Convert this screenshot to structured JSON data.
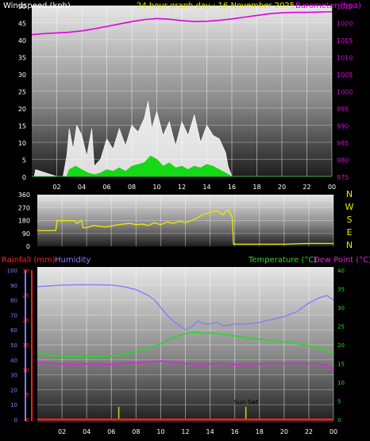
{
  "colors": {
    "background": "#000000",
    "wind": "#ffffff",
    "gust": "#00d800",
    "barometer": "#e000e0",
    "direction": "#e8e800",
    "rain": "#ff2020",
    "humidity": "#7f7fff",
    "temperature": "#22dd22",
    "dewpoint": "#e020e0",
    "sun_marker": "#d8d800",
    "axis_text": "#ffffff"
  },
  "header": {
    "wind_label": "Windspeed (kph)",
    "title": "24 hour graph day : 16 November 2025",
    "baro_label": "Barometer (hpa)"
  },
  "x_ticks": [
    "02",
    "04",
    "06",
    "08",
    "10",
    "12",
    "14",
    "16",
    "18",
    "20",
    "22",
    "00"
  ],
  "compass": [
    "N",
    "W",
    "S",
    "E",
    "N"
  ],
  "bottom_labels": {
    "rain_label": "Rainfall (mm)",
    "humidity_label": "Humidity",
    "temp_label": "Temperature (°C)",
    "dew_label": "Dew Point (°C)",
    "sunset_label": "Sun Set"
  },
  "chart_data": [
    {
      "type": "line",
      "title": "24 hour graph day : 16 November 2025",
      "y_left_label": "Windspeed (kph)",
      "y_right_label": "Barometer (hpa)",
      "y_left_ticks": [
        "0",
        "5",
        "10",
        "15",
        "20",
        "25",
        "30",
        "35",
        "40",
        "45",
        "50"
      ],
      "y_left_range": [
        0,
        50
      ],
      "y_right_ticks": [
        "975",
        "980",
        "985",
        "990",
        "995",
        "1000",
        "1005",
        "1010",
        "1015",
        "1020",
        "1025"
      ],
      "y_right_range": [
        975,
        1025
      ],
      "x_range_hours": [
        0,
        24
      ],
      "barometer": {
        "x": [
          0,
          1,
          2,
          3,
          4,
          5,
          6,
          7,
          8,
          9,
          10,
          11,
          12,
          13,
          14,
          15,
          16,
          17,
          18,
          19,
          20,
          21,
          22,
          23,
          24
        ],
        "y": [
          1016.5,
          1016.8,
          1017.0,
          1017.2,
          1017.6,
          1018.2,
          1018.9,
          1019.6,
          1020.3,
          1020.9,
          1021.2,
          1021.0,
          1020.6,
          1020.3,
          1020.4,
          1020.7,
          1021.1,
          1021.6,
          1022.1,
          1022.6,
          1022.9,
          1023.0,
          1023.0,
          1023.1,
          1023.2
        ]
      },
      "wind_envelope": {
        "x": [
          0,
          0.2,
          0.3,
          2.0,
          2.5,
          2.8,
          3.0,
          3.3,
          3.6,
          4.0,
          4.4,
          4.8,
          5.0,
          5.5,
          6.0,
          6.5,
          7.0,
          7.5,
          8.0,
          8.5,
          9.0,
          9.3,
          9.6,
          10.0,
          10.5,
          11.0,
          11.5,
          12.0,
          12.5,
          13.0,
          13.5,
          14.0,
          14.5,
          15.0,
          15.5,
          15.7,
          16.0,
          24.0
        ],
        "y": [
          0,
          0,
          2,
          0,
          0,
          6,
          14,
          8,
          15,
          12,
          6,
          14,
          3,
          5,
          11,
          8,
          14,
          9,
          15,
          13,
          17,
          22,
          14,
          19,
          12,
          16,
          9,
          16,
          12,
          18,
          10,
          15,
          12,
          11,
          7,
          3,
          0,
          0
        ]
      },
      "gust_envelope": {
        "x": [
          0,
          2.8,
          3.0,
          3.5,
          4.0,
          4.5,
          5.0,
          5.5,
          6.0,
          6.5,
          7.0,
          7.5,
          8.0,
          8.5,
          9.0,
          9.5,
          10.0,
          10.5,
          11.0,
          11.5,
          12.0,
          12.5,
          13.0,
          13.5,
          14.0,
          14.5,
          15.0,
          15.5,
          16.0,
          24.0
        ],
        "y": [
          0,
          0,
          2,
          3,
          2,
          1,
          0.5,
          1,
          2,
          1.5,
          2.5,
          1.5,
          3,
          3.5,
          4,
          6,
          5,
          3,
          4,
          2.5,
          3,
          2,
          3,
          2.5,
          3.5,
          3,
          2,
          1,
          0,
          0
        ]
      }
    },
    {
      "type": "line",
      "title": "",
      "y_left_ticks": [
        "0",
        "90",
        "180",
        "270",
        "360"
      ],
      "y_range": [
        0,
        360
      ],
      "x_range_hours": [
        0,
        24
      ],
      "wind_direction": {
        "x": [
          0,
          1.5,
          1.6,
          3.0,
          3.2,
          3.6,
          3.7,
          4.0,
          4.5,
          5.0,
          5.5,
          6.0,
          6.5,
          7.0,
          7.5,
          8.0,
          8.5,
          9.0,
          9.5,
          10.0,
          10.5,
          11.0,
          11.5,
          12.0,
          12.5,
          13.0,
          13.5,
          14.0,
          14.5,
          15.0,
          15.5,
          15.8,
          15.9,
          17.0,
          18.0,
          20.0,
          22.0,
          23.0,
          24.0
        ],
        "y": [
          110,
          110,
          180,
          178,
          160,
          180,
          130,
          130,
          145,
          140,
          135,
          140,
          150,
          155,
          160,
          150,
          155,
          145,
          165,
          150,
          170,
          160,
          175,
          165,
          180,
          200,
          225,
          235,
          250,
          220,
          255,
          200,
          15,
          15,
          15,
          15,
          20,
          20,
          20
        ]
      }
    },
    {
      "type": "line",
      "title": "",
      "y_left_label": "Rainfall (mm)",
      "y_left_ticks": [
        "0",
        "5",
        "10",
        "15",
        "20",
        "25",
        "30"
      ],
      "y_left_range": [
        0,
        30
      ],
      "y_humidity_label": "Humidity",
      "y_humidity_ticks": [
        "0",
        "10",
        "20",
        "30",
        "40",
        "50",
        "60",
        "70",
        "80",
        "90",
        "100"
      ],
      "y_humidity_range": [
        0,
        100
      ],
      "y_right_label": "Temperature (°C)",
      "y_right_label_2": "Dew Point (°C)",
      "y_right_ticks": [
        "0",
        "5",
        "10",
        "15",
        "20",
        "25",
        "30",
        "35",
        "40"
      ],
      "y_right_range": [
        0,
        40
      ],
      "x_range_hours": [
        0,
        24
      ],
      "humidity": {
        "x": [
          0,
          1,
          2,
          3,
          4,
          5,
          6,
          7,
          8,
          9,
          9.5,
          10.0,
          10.5,
          11.0,
          11.5,
          12.0,
          12.5,
          13.0,
          13.5,
          14.0,
          14.5,
          15.0,
          15.5,
          16.0,
          17.0,
          18.0,
          19.0,
          20.0,
          21.0,
          22.0,
          22.5,
          23.0,
          23.5,
          24.0
        ],
        "y": [
          89,
          89.5,
          90,
          90.2,
          90.2,
          90.2,
          90,
          89,
          87,
          83,
          80,
          75,
          70,
          66,
          63,
          60,
          62,
          66,
          64,
          64,
          65,
          63,
          63,
          64,
          64,
          65,
          67,
          69,
          72,
          78,
          80,
          82,
          83,
          80
        ]
      },
      "temperature": {
        "x": [
          0,
          1,
          2,
          3,
          4,
          5,
          6,
          7,
          8,
          9,
          10,
          10.5,
          11,
          11.5,
          12,
          12.5,
          13,
          13.5,
          14,
          15,
          16,
          17,
          18,
          19,
          20,
          21,
          22,
          23,
          24
        ],
        "y": [
          18,
          17.2,
          16.9,
          16.8,
          16.8,
          16.9,
          17,
          17.4,
          18.2,
          19.1,
          20.3,
          21.2,
          22.0,
          22.5,
          23.0,
          23.3,
          23.4,
          23.0,
          23.2,
          22.8,
          22.4,
          21.8,
          21.5,
          21.2,
          20.8,
          20.3,
          19.8,
          19.0,
          17.8
        ]
      },
      "dewpoint": {
        "x": [
          0,
          1,
          2,
          3,
          4,
          5,
          6,
          7,
          8,
          9,
          10,
          10.5,
          11,
          12,
          13,
          14,
          15,
          16,
          17,
          18,
          19,
          20,
          21,
          22,
          23,
          23.5,
          24
        ],
        "y": [
          15.3,
          15.0,
          14.9,
          14.8,
          14.9,
          14.9,
          14.8,
          15.0,
          15.2,
          15.4,
          15.7,
          15.5,
          15.3,
          15.0,
          14.8,
          14.9,
          15.0,
          14.8,
          14.9,
          14.9,
          15.0,
          15.0,
          15.1,
          15.0,
          14.9,
          14.5,
          13.0
        ]
      },
      "rainfall": {
        "x": [
          0,
          24
        ],
        "y": [
          0,
          0
        ]
      },
      "sun_markers": [
        {
          "hour": 6.6,
          "label": ""
        },
        {
          "hour": 16.9,
          "label": "Sun Set"
        }
      ]
    }
  ]
}
